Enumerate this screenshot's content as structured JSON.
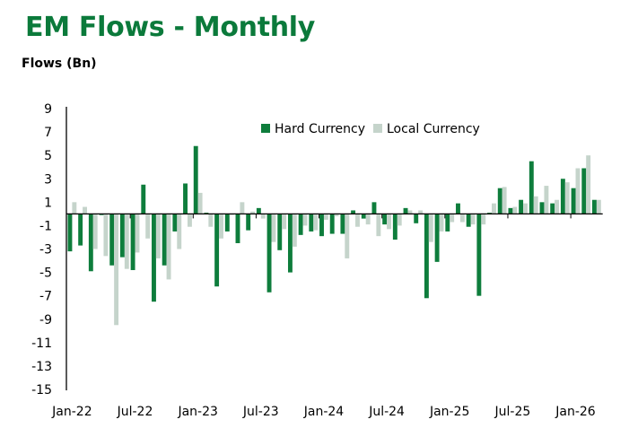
{
  "title": "EM Flows - Monthly",
  "subtitle": "Flows (Bn)",
  "colors": {
    "title": "#0b7a3b",
    "hard_currency": "#0e7d3c",
    "local_currency": "#c5d4cb",
    "axis": "#000000"
  },
  "chart_data": {
    "type": "bar",
    "title": "EM Flows - Monthly",
    "xlabel": "",
    "ylabel": "Flows (Bn)",
    "ylim": [
      -15,
      9
    ],
    "yticks": [
      9,
      7,
      5,
      3,
      1,
      -1,
      -3,
      -5,
      -7,
      -9,
      -11,
      -13,
      -15
    ],
    "grid": false,
    "legend": {
      "position": "top-right",
      "entries": [
        "Hard Currency",
        "Local Currency"
      ]
    },
    "xtick_labels": [
      {
        "index": 0,
        "label": "Jan-22"
      },
      {
        "index": 6,
        "label": "Jul-22"
      },
      {
        "index": 12,
        "label": "Jan-23"
      },
      {
        "index": 18,
        "label": "Jul-23"
      },
      {
        "index": 24,
        "label": "Jan-24"
      },
      {
        "index": 30,
        "label": "Jul-24"
      },
      {
        "index": 36,
        "label": "Jan-25"
      },
      {
        "index": 42,
        "label": "Jul-25"
      },
      {
        "index": 48,
        "label": "Jan-26"
      }
    ],
    "categories": [
      "Jan-22",
      "Feb-22",
      "Mar-22",
      "Apr-22",
      "May-22",
      "Jun-22",
      "Jul-22",
      "Aug-22",
      "Sep-22",
      "Oct-22",
      "Nov-22",
      "Dec-22",
      "Jan-23",
      "Feb-23",
      "Mar-23",
      "Apr-23",
      "May-23",
      "Jun-23",
      "Jul-23",
      "Aug-23",
      "Sep-23",
      "Oct-23",
      "Nov-23",
      "Dec-23",
      "Jan-24",
      "Feb-24",
      "Mar-24",
      "Apr-24",
      "May-24",
      "Jun-24",
      "Jul-24",
      "Aug-24",
      "Sep-24",
      "Oct-24",
      "Nov-24",
      "Dec-24",
      "Jan-25",
      "Feb-25",
      "Mar-25",
      "Apr-25",
      "May-25",
      "Jun-25",
      "Jul-25",
      "Aug-25",
      "Sep-25",
      "Oct-25",
      "Nov-25",
      "Dec-25",
      "Jan-26",
      "Feb-26",
      "Mar-26"
    ],
    "series": [
      {
        "name": "Hard Currency",
        "values": [
          -3.2,
          -2.7,
          -4.9,
          -0.1,
          -4.4,
          -3.7,
          -4.8,
          2.5,
          -7.5,
          -4.4,
          -1.5,
          2.6,
          5.8,
          0.1,
          -6.2,
          -1.5,
          -2.5,
          -1.4,
          0.5,
          -6.7,
          -3.1,
          -5.0,
          -1.8,
          -1.5,
          -1.9,
          -1.7,
          -1.7,
          0.3,
          -0.4,
          1.0,
          -0.9,
          -2.2,
          0.5,
          -0.8,
          -7.2,
          -4.1,
          -1.5,
          0.9,
          -1.1,
          -7.0,
          0.1,
          2.2,
          0.5,
          1.2,
          4.5,
          1.0,
          0.9,
          3.0,
          2.2,
          3.9,
          1.2
        ]
      },
      {
        "name": "Local Currency",
        "values": [
          1.0,
          0.6,
          -3.0,
          -3.6,
          -9.5,
          -4.7,
          -3.3,
          -2.1,
          -3.8,
          -5.6,
          -3.0,
          -1.1,
          1.8,
          -1.1,
          -2.1,
          -0.1,
          1.0,
          0.2,
          -0.4,
          -2.4,
          -1.3,
          -2.8,
          -1.0,
          -1.4,
          -0.5,
          -0.2,
          -3.8,
          -1.1,
          -0.9,
          -1.9,
          -1.3,
          -1.0,
          0.3,
          0.3,
          -2.4,
          -1.5,
          -0.7,
          -0.7,
          -0.9,
          -0.9,
          0.9,
          2.3,
          0.6,
          0.9,
          1.5,
          2.4,
          1.2,
          2.7,
          3.9,
          5.0,
          1.2
        ]
      }
    ]
  }
}
